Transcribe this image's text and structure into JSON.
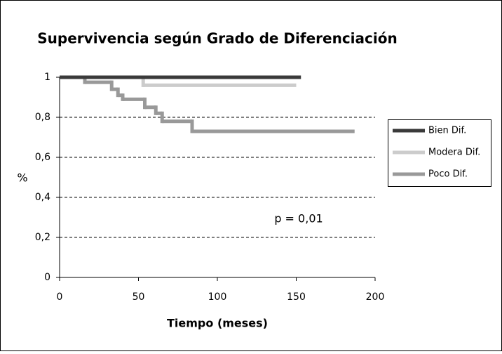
{
  "chart_data": {
    "type": "step",
    "title": "Supervivencia según Grado de Diferenciación",
    "x_label": "Tiempo (meses)",
    "y_label": "%",
    "annotation": "p = 0,01",
    "xlim": [
      0,
      200
    ],
    "xticks": [
      0,
      50,
      100,
      150,
      200
    ],
    "ylim": [
      0,
      1
    ],
    "yticks": [
      0,
      {
        "value": 0.2,
        "label": "0,2"
      },
      {
        "value": 0.4,
        "label": "0,4"
      },
      {
        "value": 0.6,
        "label": "0,6"
      },
      {
        "value": 0.8,
        "label": "0,8"
      },
      1
    ],
    "grid": true,
    "legend": "right",
    "series": [
      {
        "name": "Bien Dif.",
        "color": "#3a3a3a",
        "x": [
          0,
          153
        ],
        "values": [
          1,
          1
        ]
      },
      {
        "name": "Modera Dif.",
        "color": "#cccccc",
        "x": [
          0,
          53,
          150
        ],
        "values": [
          1,
          0.96,
          0.96
        ]
      },
      {
        "name": "Poco Dif.",
        "color": "#999999",
        "x": [
          0,
          16,
          33,
          37,
          40,
          54,
          61,
          65,
          84,
          187
        ],
        "values": [
          1,
          0.975,
          0.94,
          0.91,
          0.89,
          0.85,
          0.82,
          0.78,
          0.73,
          0.73
        ]
      }
    ]
  }
}
